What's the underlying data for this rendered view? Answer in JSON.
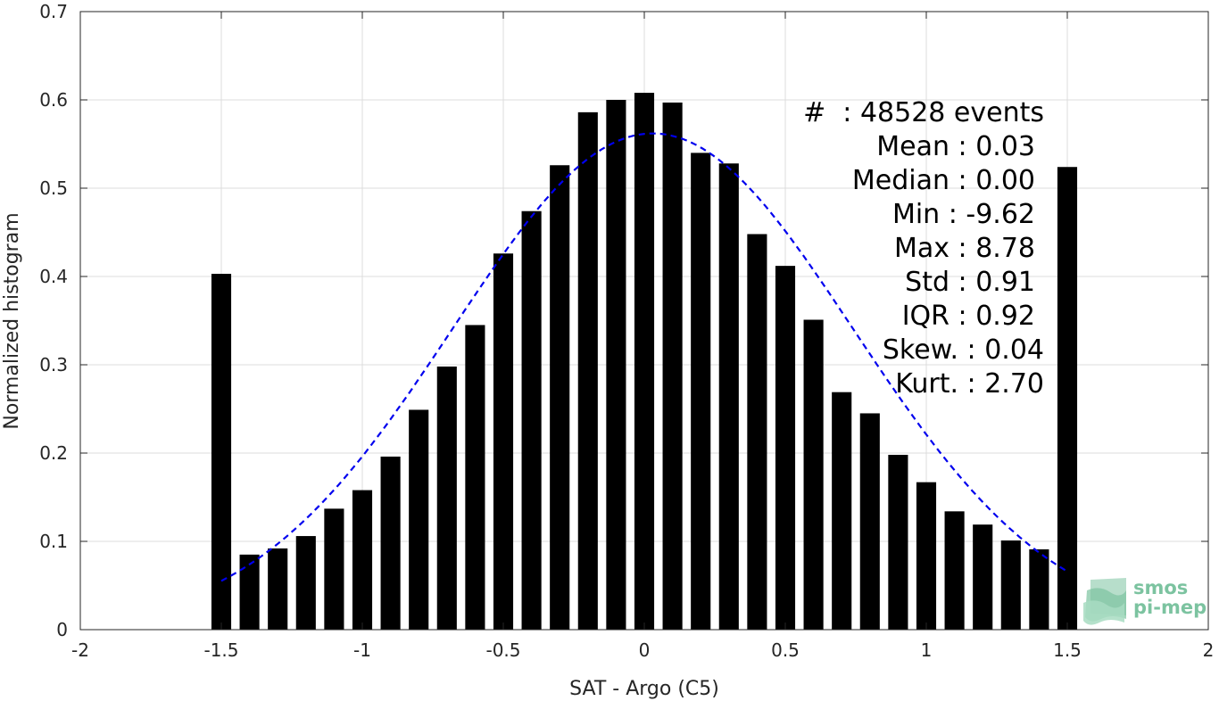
{
  "chart_data": {
    "type": "bar",
    "xlabel": "SAT - Argo (C5)",
    "ylabel": "Normalized histogram",
    "xlim": [
      -2,
      2
    ],
    "ylim": [
      0,
      0.7
    ],
    "x_ticks": [
      -2,
      -1.5,
      -1,
      -0.5,
      0,
      0.5,
      1,
      1.5,
      2
    ],
    "x_tick_labels": [
      "-2",
      "-1.5",
      "-1",
      "-0.5",
      "0",
      "0.5",
      "1",
      "1.5",
      "2"
    ],
    "y_ticks": [
      0,
      0.1,
      0.2,
      0.3,
      0.4,
      0.5,
      0.6,
      0.7
    ],
    "y_tick_labels": [
      "0",
      "0.1",
      "0.2",
      "0.3",
      "0.4",
      "0.5",
      "0.6",
      "0.7"
    ],
    "grid": true,
    "bar_color": "#000000",
    "curve_color": "#0000ee",
    "bar_width": 0.07,
    "bins": [
      {
        "x": -1.5,
        "value": 0.403
      },
      {
        "x": -1.4,
        "value": 0.085
      },
      {
        "x": -1.3,
        "value": 0.092
      },
      {
        "x": -1.2,
        "value": 0.106
      },
      {
        "x": -1.1,
        "value": 0.137
      },
      {
        "x": -1.0,
        "value": 0.158
      },
      {
        "x": -0.9,
        "value": 0.196
      },
      {
        "x": -0.8,
        "value": 0.249
      },
      {
        "x": -0.7,
        "value": 0.298
      },
      {
        "x": -0.6,
        "value": 0.345
      },
      {
        "x": -0.5,
        "value": 0.426
      },
      {
        "x": -0.4,
        "value": 0.474
      },
      {
        "x": -0.3,
        "value": 0.526
      },
      {
        "x": -0.2,
        "value": 0.586
      },
      {
        "x": -0.1,
        "value": 0.6
      },
      {
        "x": 0.0,
        "value": 0.608
      },
      {
        "x": 0.1,
        "value": 0.597
      },
      {
        "x": 0.2,
        "value": 0.54
      },
      {
        "x": 0.3,
        "value": 0.528
      },
      {
        "x": 0.4,
        "value": 0.448
      },
      {
        "x": 0.5,
        "value": 0.412
      },
      {
        "x": 0.6,
        "value": 0.351
      },
      {
        "x": 0.7,
        "value": 0.269
      },
      {
        "x": 0.8,
        "value": 0.245
      },
      {
        "x": 0.9,
        "value": 0.198
      },
      {
        "x": 1.0,
        "value": 0.167
      },
      {
        "x": 1.1,
        "value": 0.134
      },
      {
        "x": 1.2,
        "value": 0.119
      },
      {
        "x": 1.3,
        "value": 0.101
      },
      {
        "x": 1.4,
        "value": 0.091
      },
      {
        "x": 1.5,
        "value": 0.524
      }
    ],
    "fit_curve": {
      "style": "dashed",
      "type": "gaussian",
      "mean": 0.03,
      "std": 0.71,
      "peak": 0.562,
      "x_range": [
        -1.5,
        1.5
      ]
    },
    "stats": {
      "count": "#  : 48528 events",
      "mean": "Mean : 0.03",
      "median": "Median : 0.00",
      "min": "Min : -9.62",
      "max": "Max : 8.78",
      "std": "Std : 0.91",
      "iqr": "IQR : 0.92",
      "skew": "Skew. : 0.04",
      "kurt": "Kurt. : 2.70"
    }
  },
  "logo": {
    "line1": "smos",
    "line2": "pi-mep",
    "color": "#7cc3a0"
  }
}
